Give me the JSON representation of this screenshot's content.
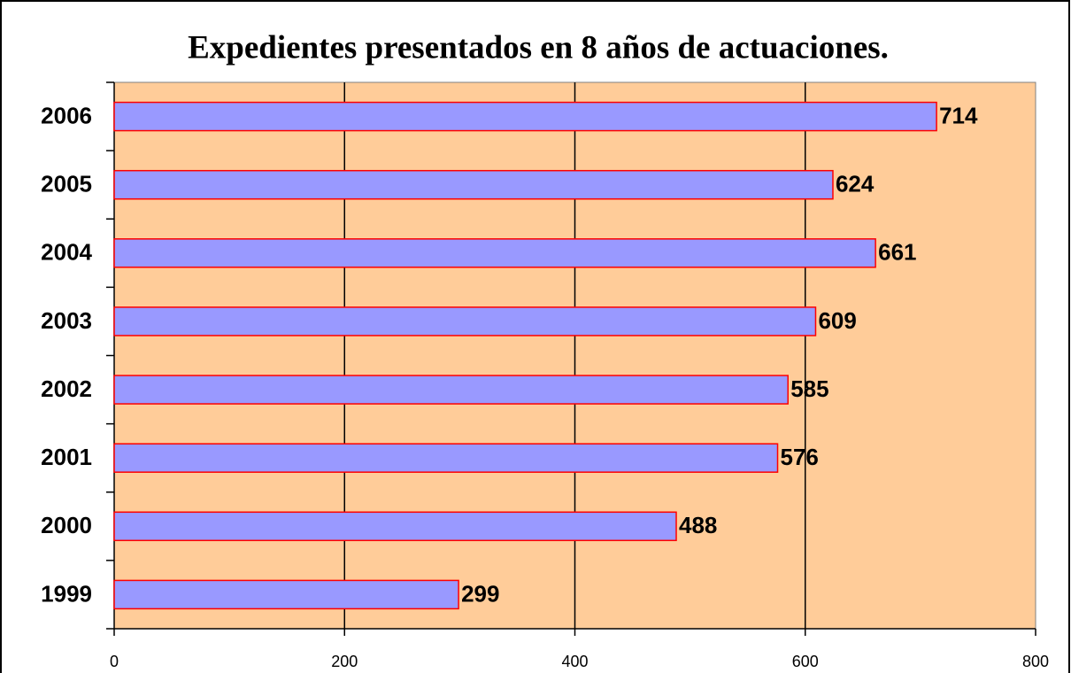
{
  "chart_data": {
    "type": "bar",
    "orientation": "horizontal",
    "title": "Expedientes presentados en 8 años de actuaciones.",
    "categories": [
      "1999",
      "2000",
      "2001",
      "2002",
      "2003",
      "2004",
      "2005",
      "2006"
    ],
    "values": [
      299,
      488,
      576,
      585,
      609,
      661,
      624,
      714
    ],
    "color": "#9999ff",
    "edge_color": "#ff0000",
    "plot_background": "#ffcc99",
    "xlim": [
      0,
      800
    ],
    "xticks": [
      0,
      200,
      400,
      600,
      800
    ],
    "grid": true
  }
}
